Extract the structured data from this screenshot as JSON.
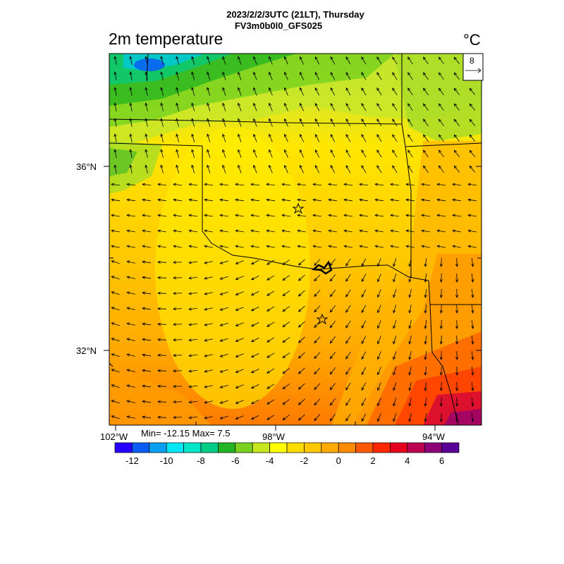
{
  "header": {
    "line1": "2023/2/2/3UTC (21LT), Thursday",
    "line2": "FV3m0b0l0_GFS025"
  },
  "field": {
    "name": "2m temperature",
    "unit": "°C"
  },
  "vector_reference": {
    "value": "8"
  },
  "axes": {
    "lat_labels": [
      "36°N",
      "32°N"
    ],
    "lon_labels": [
      "102°W",
      "98°W",
      "94°W"
    ]
  },
  "stats": {
    "text": "Min= -12.15 Max= 7.5"
  },
  "colorbar": {
    "colors": [
      "#2600ff",
      "#0a5cf5",
      "#0aa0f0",
      "#00e6f5",
      "#00e6c8",
      "#00cc88",
      "#22b422",
      "#7ad21e",
      "#c8e61e",
      "#ffff00",
      "#ffdc00",
      "#ffc800",
      "#ffaa00",
      "#ff8c00",
      "#ff5a00",
      "#ff2800",
      "#e6001e",
      "#be0050",
      "#8c0078",
      "#5a0096"
    ],
    "tick_labels": [
      "-12",
      "-10",
      "-8",
      "-6",
      "-4",
      "-2",
      "0",
      "2",
      "4",
      "6"
    ]
  },
  "markers": [
    "city-star-north",
    "city-star-south"
  ]
}
